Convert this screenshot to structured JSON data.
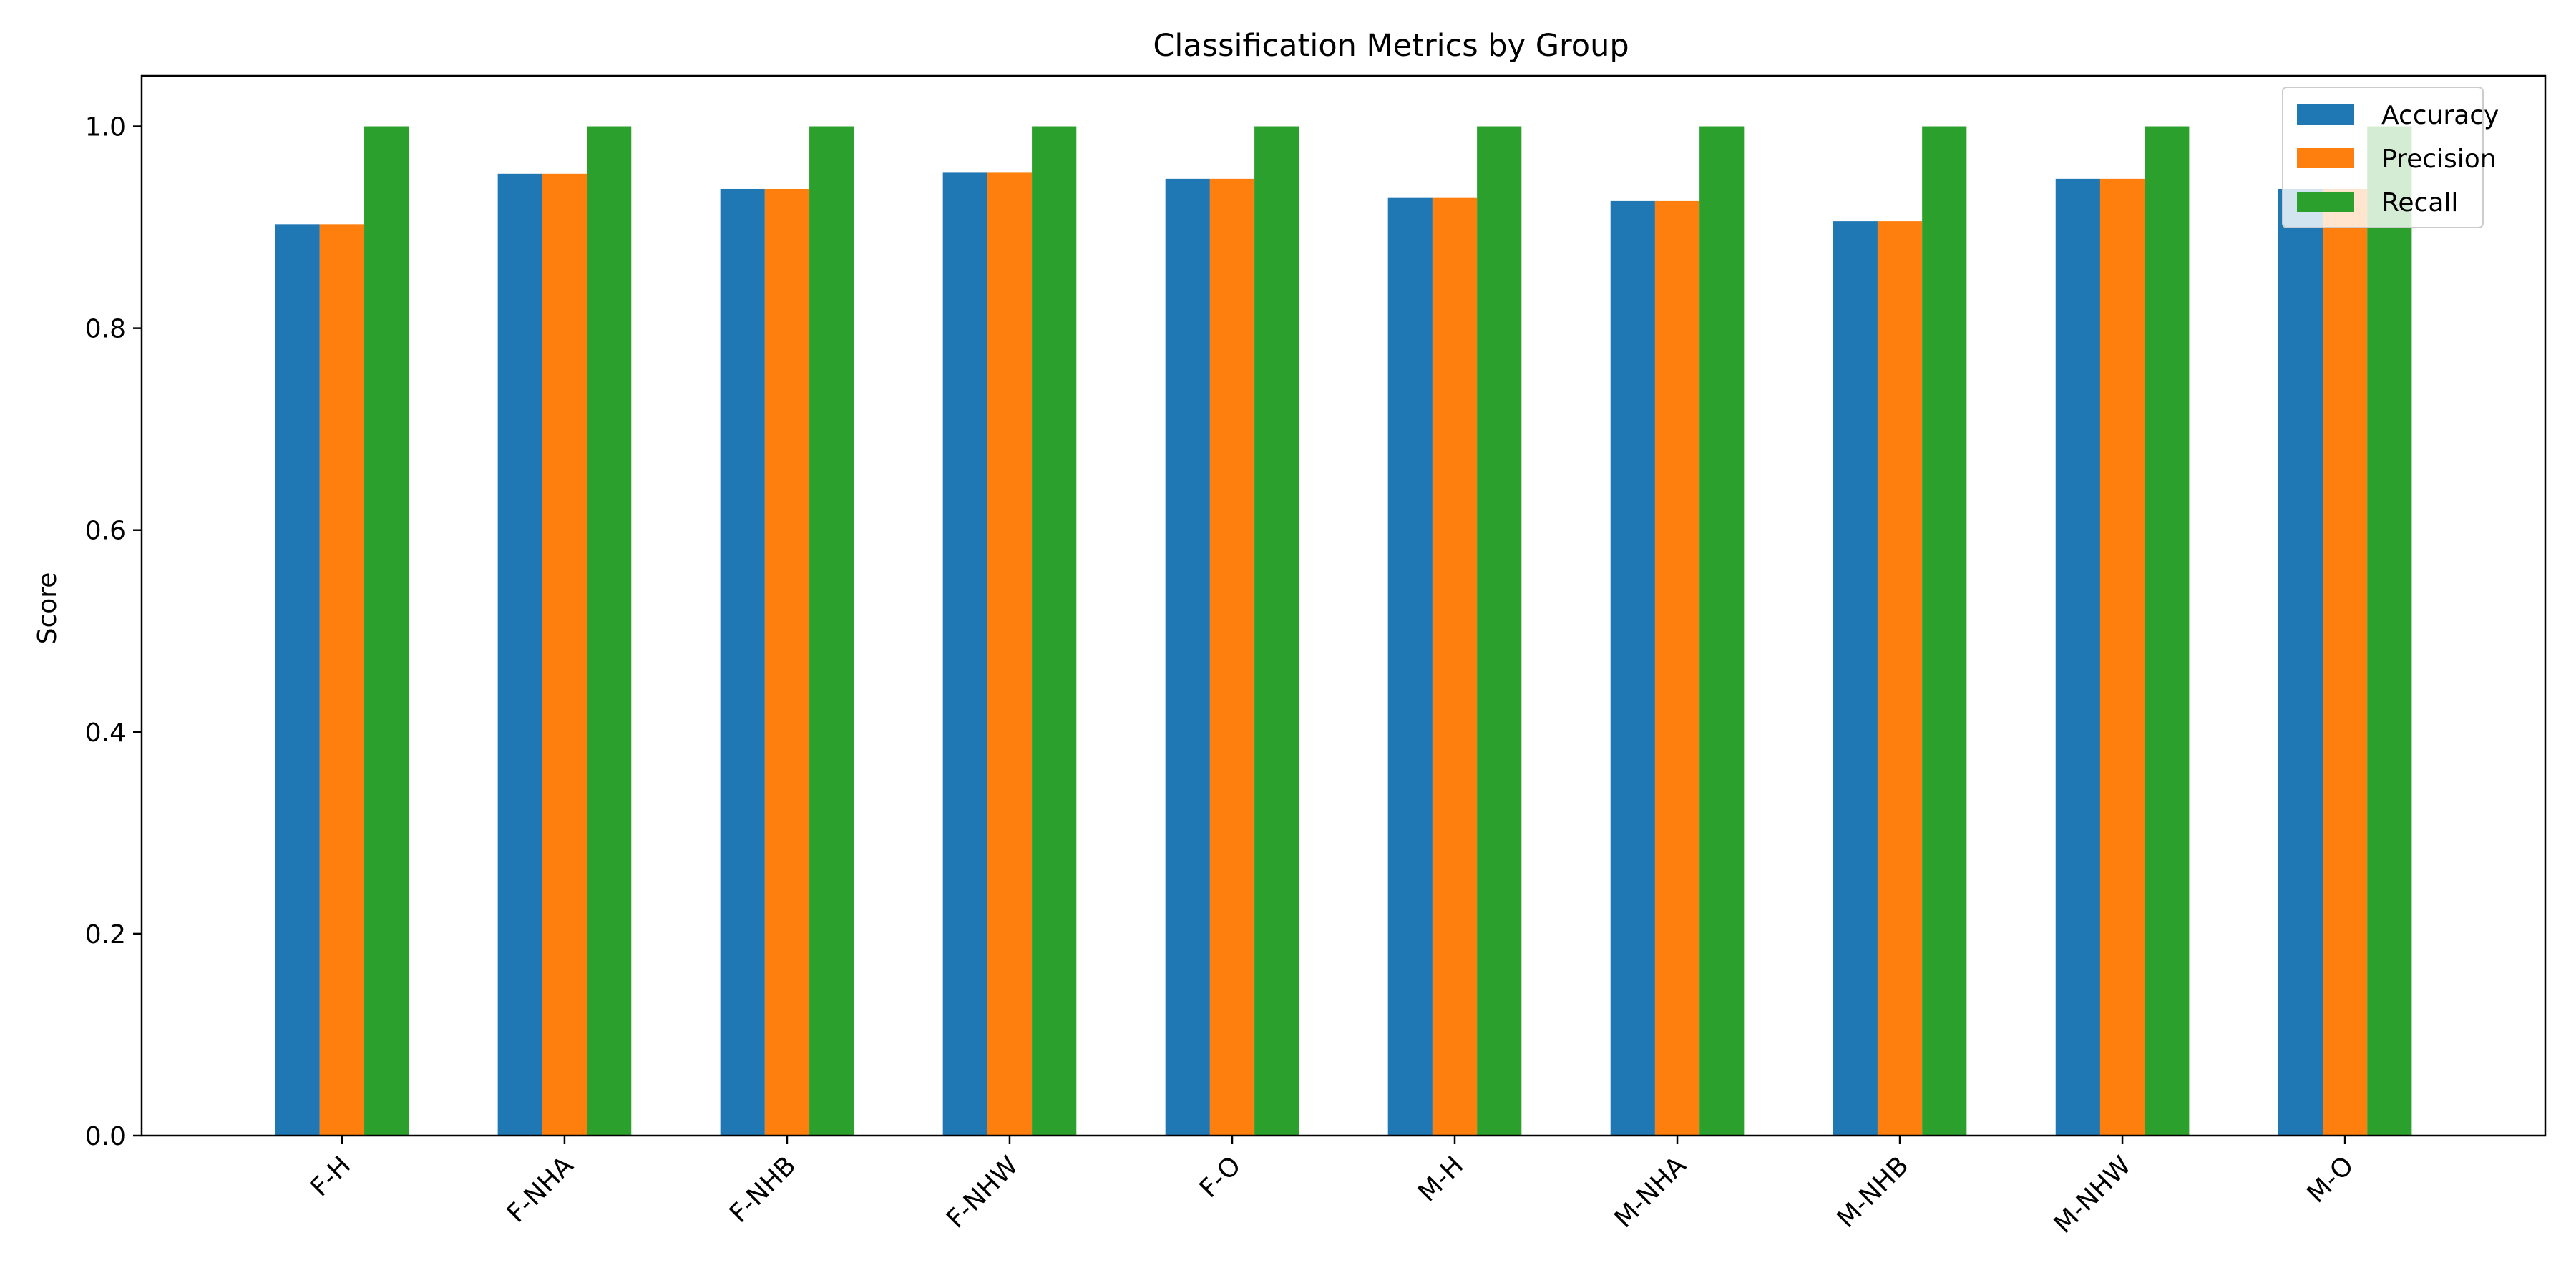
{
  "chart_data": {
    "type": "bar",
    "title": "Classification Metrics by Group",
    "xlabel": "",
    "ylabel": "Score",
    "categories": [
      "F-H",
      "F-NHA",
      "F-NHB",
      "F-NHW",
      "F-O",
      "M-H",
      "M-NHA",
      "M-NHB",
      "M-NHW",
      "M-O"
    ],
    "series": [
      {
        "name": "Accuracy",
        "color": "#1f77b4",
        "values": [
          0.903,
          0.953,
          0.938,
          0.954,
          0.948,
          0.929,
          0.926,
          0.906,
          0.948,
          0.938
        ]
      },
      {
        "name": "Precision",
        "color": "#ff7f0e",
        "values": [
          0.903,
          0.953,
          0.938,
          0.954,
          0.948,
          0.929,
          0.926,
          0.906,
          0.948,
          0.938
        ]
      },
      {
        "name": "Recall",
        "color": "#2ca02c",
        "values": [
          1.0,
          1.0,
          1.0,
          1.0,
          1.0,
          1.0,
          1.0,
          1.0,
          1.0,
          1.0
        ]
      }
    ],
    "ylim": [
      0,
      1.05
    ],
    "yticks": [
      "0.0",
      "0.2",
      "0.4",
      "0.6",
      "0.8",
      "1.0"
    ],
    "grid": false,
    "legend_position": "top-right"
  }
}
